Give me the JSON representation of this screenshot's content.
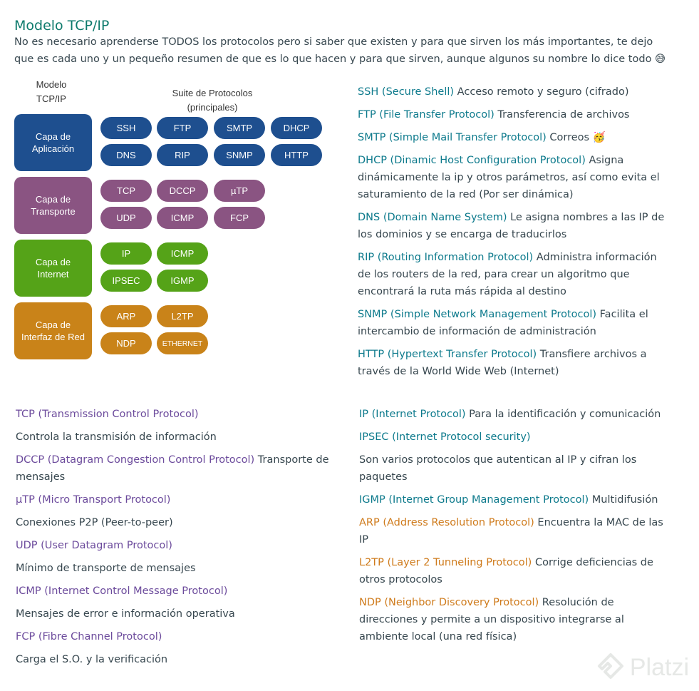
{
  "title": "Modelo TCP/IP",
  "intro": "No es necesario aprenderse TODOS los protocolos pero si saber que existen y para que sirven los más importantes, te dejo que es cada uno y un pequeño resumen de que es lo que hacen y para que sirven, aunque algunos su nombre lo dice todo 😅",
  "diagram": {
    "header_model": "Modelo\nTCP/IP",
    "header_suite": "Suite de Protocolos\n(principales)",
    "layers": [
      {
        "name": "Capa de\nAplicación",
        "color": "#1e4f8f",
        "protocols": [
          "SSH",
          "FTP",
          "SMTP",
          "DHCP",
          "DNS",
          "RIP",
          "SNMP",
          "HTTP"
        ]
      },
      {
        "name": "Capa de\nTransporte",
        "color": "#8a5482",
        "protocols": [
          "TCP",
          "DCCP",
          "µTP",
          "UDP",
          "ICMP",
          "FCP"
        ]
      },
      {
        "name": "Capa de\nInternet",
        "color": "#55a318",
        "protocols": [
          "IP",
          "ICMP",
          "IPSEC",
          "IGMP"
        ]
      },
      {
        "name": "Capa de\nInterfaz de Red",
        "color": "#c98319",
        "protocols": [
          "ARP",
          "L2TP",
          "NDP",
          "ETHERNET"
        ]
      }
    ]
  },
  "right_list": [
    {
      "term": "SSH (Secure Shell)",
      "desc": " Acceso remoto y seguro (cifrado)"
    },
    {
      "term": "FTP (File Transfer Protocol)",
      "desc": " Transferencia de archivos"
    },
    {
      "term": "SMTP (Simple Mail Transfer Protocol)",
      "desc": " Correos 🥳"
    },
    {
      "term": "DHCP (Dinamic Host Configuration Protocol)",
      "desc": " Asigna dinámicamente la ip y otros parámetros, así como evita el saturamiento de la red (Por ser dinámica)"
    },
    {
      "term": "DNS (Domain Name System)",
      "desc": " Le asigna nombres a las IP de los dominios y se encarga de traducirlos"
    },
    {
      "term": "RIP (Routing Information Protocol)",
      "desc": " Administra información de los routers de la red, para crear un algoritmo que encontrará la ruta más rápida al destino"
    },
    {
      "term": "SNMP (Simple Network Management Protocol)",
      "desc": " Facilita el intercambio de información de administración"
    },
    {
      "term": "HTTP (Hypertext Transfer Protocol)",
      "desc": " Transfiere archivos a través de la World Wide Web (Internet)"
    }
  ],
  "transport_list": [
    {
      "term": "TCP (Transmission Control Protocol)",
      "desc": "Controla la transmisión de información",
      "block": true
    },
    {
      "term": "DCCP (Datagram Congestion Control Protocol)",
      "desc": " Transporte de mensajes",
      "block": false
    },
    {
      "term": "µTP (Micro Transport Protocol)",
      "desc": "Conexiones P2P (Peer-to-peer)",
      "block": true
    },
    {
      "term": "UDP (User Datagram Protocol)",
      "desc": "Mínimo de transporte de mensajes",
      "block": true
    },
    {
      "term": "ICMP (Internet Control Message Protocol)",
      "desc": "Mensajes de error e información operativa",
      "block": true
    },
    {
      "term": "FCP (Fibre Channel Protocol)",
      "desc": "Carga el S.O. y la verificación",
      "block": true
    }
  ],
  "internet_list": [
    {
      "term": "IP (Internet Protocol)",
      "desc": " Para la identificación y comunicación",
      "color": "teal",
      "block": false
    },
    {
      "term": "IPSEC (Internet Protocol security)",
      "desc": "Son varios protocolos que autentican al IP y cifran los paquetes",
      "color": "teal",
      "block": true
    },
    {
      "term": "IGMP (Internet Group Management Protocol)",
      "desc": " Multidifusión",
      "color": "teal",
      "block": false
    },
    {
      "term": "ARP (Address Resolution Protocol)",
      "desc": " Encuentra la MAC de las IP",
      "color": "orange",
      "block": false
    },
    {
      "term": "L2TP (Layer 2 Tunneling Protocol)",
      "desc": " Corrige deficiencias de otros protocolos",
      "color": "orange",
      "block": false
    },
    {
      "term": "NDP (Neighbor Discovery Protocol)",
      "desc": " Resolución de direcciones y permite a un dispositivo integrarse al ambiente local (una red física)",
      "color": "orange",
      "block": false
    }
  ],
  "watermark": "Platzi"
}
